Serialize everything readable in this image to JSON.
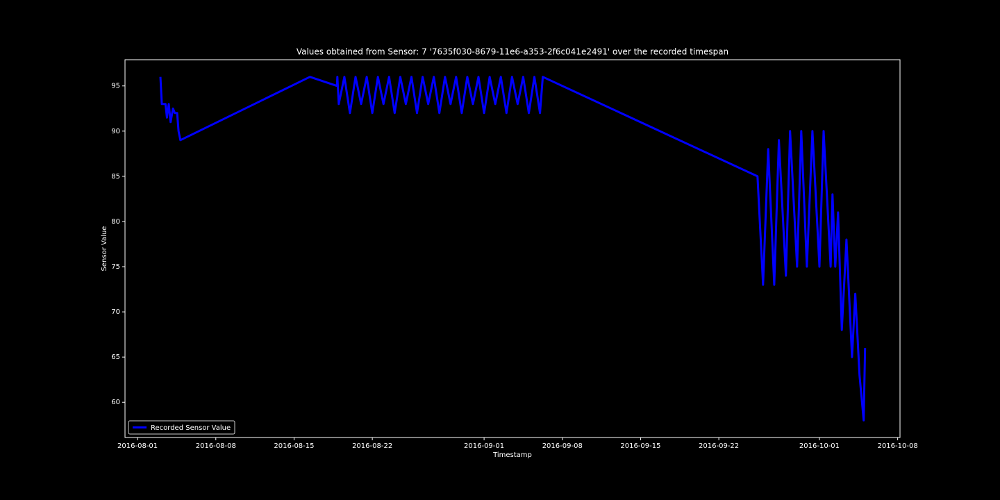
{
  "chart_data": {
    "type": "line",
    "title": "Values obtained from Sensor: 7 '7635f030-8679-11e6-a353-2f6c041e2491' over the recorded timespan",
    "xlabel": "Timestamp",
    "ylabel": "Sensor Value",
    "x": [
      "2016-08-03T01:00",
      "2016-08-03T04:00",
      "2016-08-03T12:00",
      "2016-08-03T15:00",
      "2016-08-03T19:00",
      "2016-08-03T23:00",
      "2016-08-04T04:00",
      "2016-08-04T08:00",
      "2016-08-04T13:00",
      "2016-08-04T16:00",
      "2016-08-04T20:00",
      "2016-08-16T10:00",
      "2016-08-18T20:00",
      "2016-08-18T21:00",
      "2016-08-19T00:00",
      "2016-08-19T12:00",
      "2016-08-20T00:00",
      "2016-08-20T12:00",
      "2016-08-21T00:00",
      "2016-08-21T12:00",
      "2016-08-22T00:00",
      "2016-08-22T12:00",
      "2016-08-23T00:00",
      "2016-08-23T12:00",
      "2016-08-24T00:00",
      "2016-08-24T12:00",
      "2016-08-25T00:00",
      "2016-08-25T12:00",
      "2016-08-26T00:00",
      "2016-08-26T12:00",
      "2016-08-27T00:00",
      "2016-08-27T12:00",
      "2016-08-28T00:00",
      "2016-08-28T12:00",
      "2016-08-29T00:00",
      "2016-08-29T12:00",
      "2016-08-30T00:00",
      "2016-08-30T12:00",
      "2016-08-31T00:00",
      "2016-08-31T12:00",
      "2016-09-01T00:00",
      "2016-09-01T12:00",
      "2016-09-02T00:00",
      "2016-09-02T12:00",
      "2016-09-03T00:00",
      "2016-09-03T12:00",
      "2016-09-04T00:00",
      "2016-09-04T12:00",
      "2016-09-05T00:00",
      "2016-09-05T12:00",
      "2016-09-06T00:00",
      "2016-09-06T06:00",
      "2016-09-25T11:00",
      "2016-09-25T23:00",
      "2016-09-26T10:00",
      "2016-09-26T23:00",
      "2016-09-27T09:00",
      "2016-09-28T00:00",
      "2016-09-28T09:00",
      "2016-09-29T00:00",
      "2016-09-29T09:00",
      "2016-09-29T21:00",
      "2016-09-30T09:00",
      "2016-10-01T00:00",
      "2016-10-01T09:00",
      "2016-10-02T00:00",
      "2016-10-02T04:00",
      "2016-10-02T10:00",
      "2016-10-02T16:00",
      "2016-10-03T00:00",
      "2016-10-03T10:00",
      "2016-10-03T22:00",
      "2016-10-04T05:00",
      "2016-10-04T14:00",
      "2016-10-04T23:00",
      "2016-10-05T02:00"
    ],
    "series": [
      {
        "name": "Recorded Sensor Value",
        "color": "#0000ff",
        "values": [
          96,
          93,
          93,
          91.5,
          93,
          91,
          92.5,
          92,
          92,
          90,
          89,
          96,
          95,
          96,
          93,
          96,
          92,
          96,
          93,
          96,
          92,
          96,
          93,
          96,
          92,
          96,
          93,
          96,
          92,
          96,
          93,
          96,
          92,
          96,
          93,
          96,
          92,
          96,
          93,
          96,
          92,
          96,
          93,
          96,
          92,
          96,
          93,
          96,
          92,
          96,
          92,
          96,
          85,
          73,
          88,
          73,
          89,
          74,
          90,
          75,
          90,
          75,
          90,
          75,
          90,
          75,
          83,
          75,
          81,
          68,
          78,
          65,
          72,
          63,
          58,
          66
        ]
      }
    ],
    "xlim": [
      "2016-07-30T21:00",
      "2016-10-08T05:00"
    ],
    "xticks": [
      "2016-08-01",
      "2016-08-08",
      "2016-08-15",
      "2016-08-22",
      "2016-09-01",
      "2016-09-08",
      "2016-09-15",
      "2016-09-22",
      "2016-10-01",
      "2016-10-08"
    ],
    "ylim": [
      56.1,
      97.9
    ],
    "yticks": [
      60,
      65,
      70,
      75,
      80,
      85,
      90,
      95
    ],
    "grid": false,
    "legend": "lower left"
  }
}
